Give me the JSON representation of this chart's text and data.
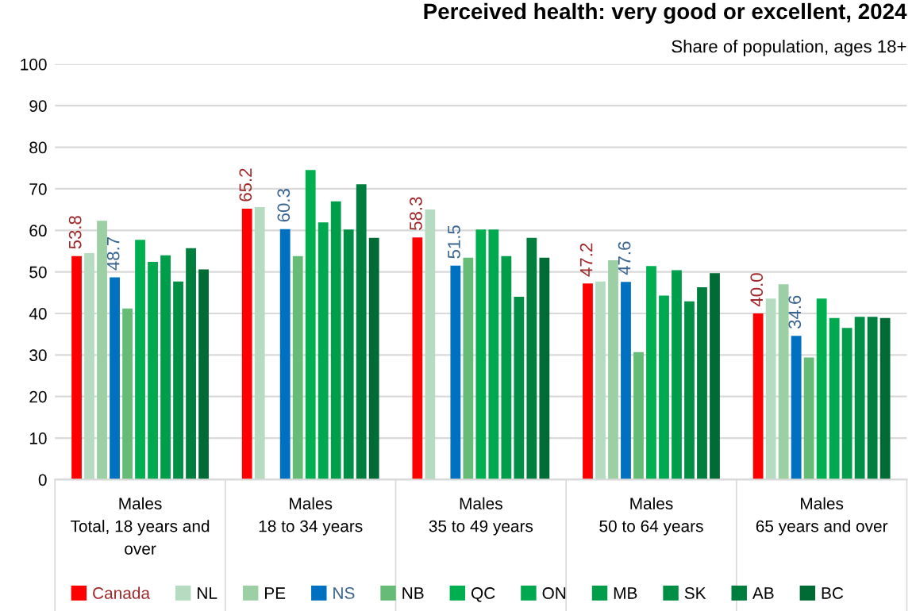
{
  "chart_data": {
    "type": "bar",
    "title": "Perceived health: very good or excellent, 2024",
    "subtitle": "Share of population, ages 18+",
    "categories": [
      "Males\nTotal, 18 years and\nover",
      "Males\n18 to 34 years",
      "Males\n35 to 49 years",
      "Males\n50 to 64 years",
      "Males\n65 years and over"
    ],
    "series": [
      {
        "name": "Canada",
        "color": "#ff0000",
        "values": [
          53.8,
          65.2,
          58.3,
          47.2,
          40.0
        ],
        "value_labels": [
          "53.8",
          "65.2",
          "58.3",
          "47.2",
          "40.0"
        ]
      },
      {
        "name": "NL",
        "color": "#b5dcc0",
        "values": [
          54.5,
          65.6,
          65.0,
          47.7,
          43.6
        ]
      },
      {
        "name": "PE",
        "color": "#9ccfa4",
        "values": [
          62.3,
          null,
          null,
          52.8,
          47.0
        ]
      },
      {
        "name": "NS",
        "color": "#0070c0",
        "values": [
          48.7,
          60.3,
          51.5,
          47.6,
          34.6
        ],
        "value_labels": [
          "48.7",
          "60.3",
          "51.5",
          "47.6",
          "34.6"
        ]
      },
      {
        "name": "NB",
        "color": "#66bb77",
        "values": [
          41.2,
          53.8,
          53.4,
          30.7,
          29.4
        ]
      },
      {
        "name": "QC",
        "color": "#00b050",
        "values": [
          57.7,
          74.5,
          60.2,
          51.4,
          43.6
        ]
      },
      {
        "name": "ON",
        "color": "#00a84f",
        "values": [
          52.4,
          61.9,
          60.2,
          44.3,
          38.9
        ]
      },
      {
        "name": "MB",
        "color": "#009d4a",
        "values": [
          54.0,
          67.0,
          53.8,
          50.4,
          36.5
        ]
      },
      {
        "name": "SK",
        "color": "#008f45",
        "values": [
          47.7,
          60.2,
          44.0,
          42.9,
          39.2
        ]
      },
      {
        "name": "AB",
        "color": "#007e3d",
        "values": [
          55.7,
          71.1,
          58.2,
          46.3,
          39.2
        ]
      },
      {
        "name": "BC",
        "color": "#006b34",
        "values": [
          50.6,
          58.2,
          53.4,
          49.7,
          38.9
        ]
      }
    ],
    "ylim": [
      0,
      100
    ],
    "yticks": [
      0,
      10,
      20,
      30,
      40,
      50,
      60,
      70,
      80,
      90,
      100
    ],
    "grid": "y",
    "legend": "bottom"
  }
}
